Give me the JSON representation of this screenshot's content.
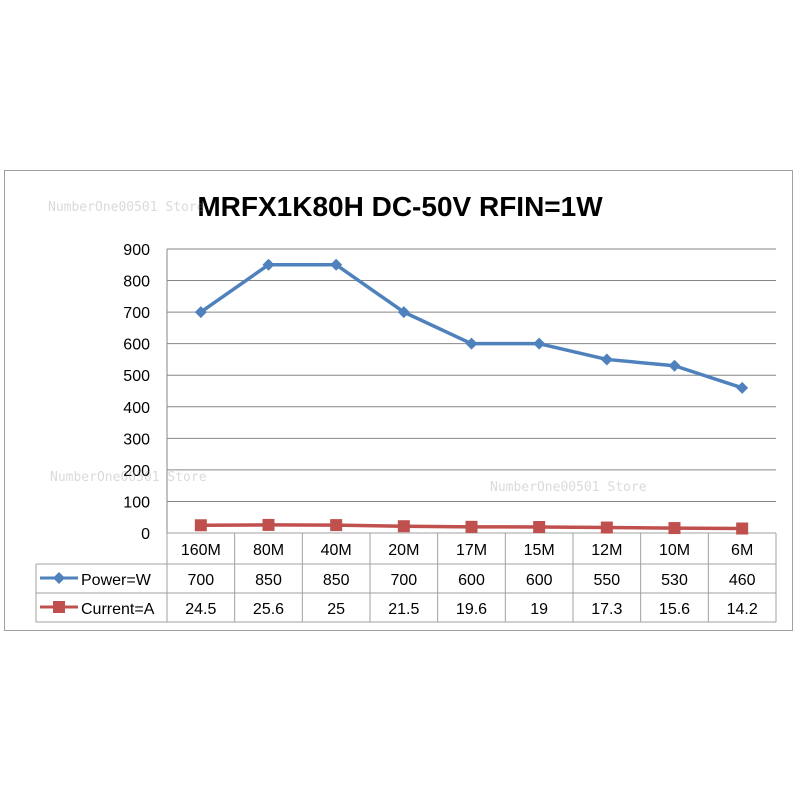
{
  "watermark": "NumberOne00501 Store",
  "chart_data": {
    "type": "line",
    "title": "MRFX1K80H      DC-50V    RFIN=1W",
    "categories": [
      "160M",
      "80M",
      "40M",
      "20M",
      "17M",
      "15M",
      "12M",
      "10M",
      "6M"
    ],
    "series": [
      {
        "name": "Power=W",
        "color": "#4f81bd",
        "marker": "diamond",
        "values": [
          700,
          850,
          850,
          700,
          600,
          600,
          550,
          530,
          460
        ]
      },
      {
        "name": "Current=A",
        "color": "#c0504d",
        "marker": "square",
        "values": [
          24.5,
          25.6,
          25,
          21.5,
          19.6,
          19,
          17.3,
          15.6,
          14.2
        ]
      }
    ],
    "ylim": [
      0,
      900
    ],
    "yticks": [
      0,
      100,
      200,
      300,
      400,
      500,
      600,
      700,
      800,
      900
    ],
    "grid": true,
    "legend": "data-table"
  }
}
